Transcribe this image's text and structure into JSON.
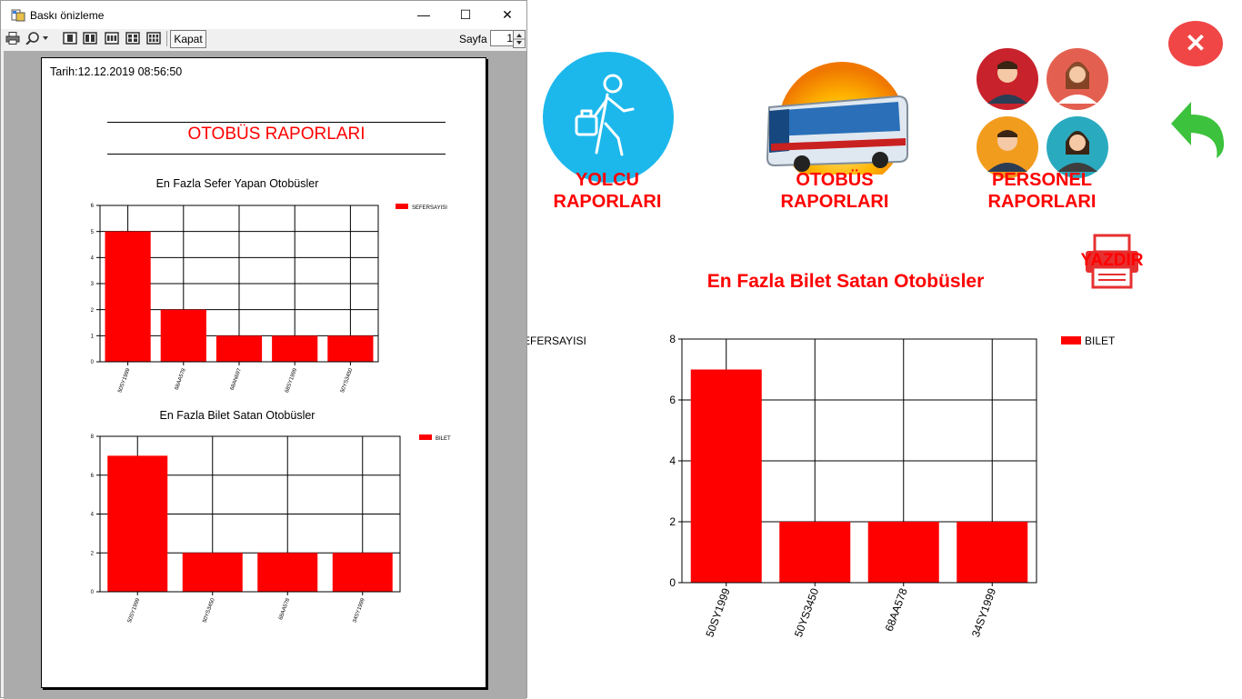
{
  "app": {
    "nav": [
      {
        "line1": "YOLCU",
        "line2": "RAPORLARI"
      },
      {
        "line1": "OTOBÜS",
        "line2": "RAPORLARI"
      },
      {
        "line1": "PERSONEL",
        "line2": "RAPORLARI"
      }
    ],
    "print_label": "YAZDIR",
    "partial_legend": "SEFERSAYISI",
    "close_glyph": "✕",
    "back_icon": "undo-arrow-icon"
  },
  "main_chart": {
    "title": "En Fazla Bilet Satan Otobüsler",
    "legend": "BILET"
  },
  "chart_data": [
    {
      "type": "bar",
      "title": "En Fazla Bilet Satan Otobüsler",
      "categories": [
        "50SY1999",
        "50YS3450",
        "68AA578",
        "34SY1999"
      ],
      "series": [
        {
          "name": "BILET",
          "values": [
            7,
            2,
            2,
            2
          ]
        }
      ],
      "ylim": [
        0,
        8
      ],
      "yticks": [
        0,
        2,
        4,
        6,
        8
      ],
      "grid": true,
      "legend": "top-right",
      "color": "#ff0000"
    },
    {
      "type": "bar",
      "title": "En Fazla Sefer Yapan Otobüsler",
      "categories": [
        "50SY1999",
        "68AA578",
        "68AN697",
        "68SY1999",
        "50YS3450"
      ],
      "series": [
        {
          "name": "SEFERSAYISI",
          "values": [
            5,
            2,
            1,
            1,
            1
          ]
        }
      ],
      "ylim": [
        0,
        6
      ],
      "yticks": [
        0,
        1,
        2,
        3,
        4,
        5,
        6
      ],
      "grid": true,
      "legend": "top-right",
      "color": "#ff0000"
    },
    {
      "type": "bar",
      "title": "En Fazla Bilet Satan Otobüsler",
      "categories": [
        "50SY1999",
        "50YS3450",
        "68AA578",
        "34SY1999"
      ],
      "series": [
        {
          "name": "BILET",
          "values": [
            7,
            2,
            2,
            2
          ]
        }
      ],
      "ylim": [
        0,
        8
      ],
      "yticks": [
        0,
        2,
        4,
        6,
        8
      ],
      "grid": true,
      "legend": "top-right",
      "color": "#ff0000"
    }
  ],
  "dialog": {
    "title": "Baskı önizleme",
    "kapat": "Kapat",
    "sayfa": "Sayfa",
    "page": "1",
    "minimize": "—",
    "maximize": "☐",
    "close": "✕"
  },
  "paper": {
    "date": "Tarih:12.12.2019 08:56:50",
    "title": "OTOBÜS RAPORLARI",
    "chart1_title": "En Fazla Sefer Yapan Otobüsler",
    "chart1_legend": "SEFERSAYISI",
    "chart2_title": "En Fazla Bilet Satan Otobüsler",
    "chart2_legend": "BILET"
  }
}
